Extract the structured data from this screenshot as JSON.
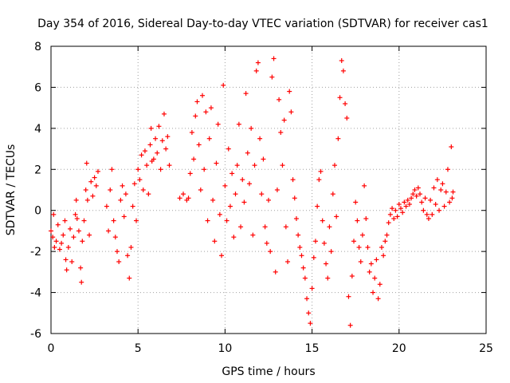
{
  "chart_data": {
    "type": "scatter",
    "title": "Day 354 of 2016, Sidereal Day-to-day VTEC variation (SDTVAR) for receiver cas1",
    "xlabel": "GPS time / hours",
    "ylabel": "SDTVAR / TECUs",
    "xlim": [
      0,
      25
    ],
    "ylim": [
      -6,
      8
    ],
    "xticks": [
      0,
      5,
      10,
      15,
      20,
      25
    ],
    "yticks": [
      -6,
      -4,
      -2,
      0,
      2,
      4,
      6,
      8
    ],
    "grid": true,
    "marker": "+",
    "marker_color": "#ff0000",
    "series": [
      {
        "name": "SDTVAR",
        "points": [
          [
            0.0,
            -1.0
          ],
          [
            0.1,
            -1.3
          ],
          [
            0.15,
            -0.2
          ],
          [
            0.2,
            -1.8
          ],
          [
            0.3,
            -1.5
          ],
          [
            0.4,
            -0.7
          ],
          [
            0.5,
            -1.9
          ],
          [
            0.6,
            -1.6
          ],
          [
            0.7,
            -1.2
          ],
          [
            0.8,
            -0.5
          ],
          [
            0.85,
            -2.4
          ],
          [
            0.9,
            -2.9
          ],
          [
            1.0,
            -1.8
          ],
          [
            1.1,
            -0.9
          ],
          [
            1.2,
            -2.5
          ],
          [
            1.3,
            -1.3
          ],
          [
            1.4,
            -0.2
          ],
          [
            1.45,
            0.5
          ],
          [
            1.5,
            -0.4
          ],
          [
            1.6,
            -1.0
          ],
          [
            1.7,
            -2.8
          ],
          [
            1.75,
            -3.5
          ],
          [
            1.8,
            -1.5
          ],
          [
            1.9,
            -0.5
          ],
          [
            2.0,
            1.0
          ],
          [
            2.05,
            2.3
          ],
          [
            2.1,
            0.5
          ],
          [
            2.2,
            -1.2
          ],
          [
            2.3,
            1.4
          ],
          [
            2.4,
            0.7
          ],
          [
            2.5,
            1.6
          ],
          [
            2.6,
            1.2
          ],
          [
            2.7,
            1.9
          ],
          [
            3.2,
            0.2
          ],
          [
            3.3,
            -1.0
          ],
          [
            3.4,
            1.0
          ],
          [
            3.5,
            2.0
          ],
          [
            3.6,
            -0.5
          ],
          [
            3.7,
            -1.3
          ],
          [
            3.8,
            -2.0
          ],
          [
            3.9,
            -2.5
          ],
          [
            4.0,
            0.5
          ],
          [
            4.1,
            1.2
          ],
          [
            4.2,
            -0.3
          ],
          [
            4.3,
            0.8
          ],
          [
            4.4,
            -2.2
          ],
          [
            4.5,
            -3.3
          ],
          [
            4.6,
            -1.8
          ],
          [
            4.7,
            0.2
          ],
          [
            4.8,
            1.3
          ],
          [
            4.9,
            -0.5
          ],
          [
            5.0,
            2.0
          ],
          [
            5.1,
            1.5
          ],
          [
            5.2,
            2.7
          ],
          [
            5.3,
            1.0
          ],
          [
            5.4,
            2.9
          ],
          [
            5.5,
            2.2
          ],
          [
            5.6,
            0.8
          ],
          [
            5.7,
            3.2
          ],
          [
            5.75,
            4.0
          ],
          [
            5.8,
            2.4
          ],
          [
            5.9,
            2.5
          ],
          [
            6.0,
            3.5
          ],
          [
            6.1,
            2.8
          ],
          [
            6.2,
            4.1
          ],
          [
            6.3,
            2.0
          ],
          [
            6.4,
            3.4
          ],
          [
            6.5,
            4.7
          ],
          [
            6.6,
            3.0
          ],
          [
            6.7,
            3.6
          ],
          [
            6.8,
            2.2
          ],
          [
            7.4,
            0.6
          ],
          [
            7.6,
            0.8
          ],
          [
            7.8,
            0.5
          ],
          [
            7.9,
            0.6
          ],
          [
            8.0,
            1.8
          ],
          [
            8.1,
            3.8
          ],
          [
            8.2,
            2.5
          ],
          [
            8.3,
            4.6
          ],
          [
            8.4,
            5.3
          ],
          [
            8.5,
            3.2
          ],
          [
            8.6,
            1.0
          ],
          [
            8.7,
            5.6
          ],
          [
            8.8,
            2.0
          ],
          [
            8.9,
            4.8
          ],
          [
            9.0,
            -0.5
          ],
          [
            9.1,
            3.5
          ],
          [
            9.2,
            5.0
          ],
          [
            9.3,
            0.5
          ],
          [
            9.4,
            -1.5
          ],
          [
            9.5,
            2.3
          ],
          [
            9.6,
            4.2
          ],
          [
            9.7,
            -0.2
          ],
          [
            9.8,
            -2.2
          ],
          [
            9.9,
            6.1
          ],
          [
            10.0,
            1.2
          ],
          [
            10.1,
            -0.5
          ],
          [
            10.2,
            3.0
          ],
          [
            10.3,
            0.2
          ],
          [
            10.4,
            1.8
          ],
          [
            10.5,
            -1.3
          ],
          [
            10.6,
            0.8
          ],
          [
            10.7,
            2.2
          ],
          [
            10.8,
            4.2
          ],
          [
            10.9,
            -0.8
          ],
          [
            11.0,
            1.5
          ],
          [
            11.1,
            0.4
          ],
          [
            11.2,
            5.7
          ],
          [
            11.3,
            2.8
          ],
          [
            11.4,
            1.3
          ],
          [
            11.5,
            4.0
          ],
          [
            11.6,
            -1.2
          ],
          [
            11.7,
            2.2
          ],
          [
            11.8,
            6.8
          ],
          [
            11.9,
            7.2
          ],
          [
            12.0,
            3.5
          ],
          [
            12.1,
            0.8
          ],
          [
            12.2,
            2.5
          ],
          [
            12.3,
            -0.8
          ],
          [
            12.4,
            -1.6
          ],
          [
            12.5,
            0.5
          ],
          [
            12.6,
            -2.0
          ],
          [
            12.7,
            6.5
          ],
          [
            12.8,
            7.4
          ],
          [
            12.9,
            -3.0
          ],
          [
            13.0,
            1.0
          ],
          [
            13.1,
            5.4
          ],
          [
            13.2,
            3.8
          ],
          [
            13.3,
            2.2
          ],
          [
            13.4,
            4.4
          ],
          [
            13.5,
            -0.8
          ],
          [
            13.6,
            -2.5
          ],
          [
            13.7,
            5.8
          ],
          [
            13.8,
            4.8
          ],
          [
            13.9,
            1.5
          ],
          [
            14.0,
            0.6
          ],
          [
            14.1,
            -0.4
          ],
          [
            14.2,
            -1.2
          ],
          [
            14.3,
            -1.8
          ],
          [
            14.4,
            -2.2
          ],
          [
            14.5,
            -2.8
          ],
          [
            14.6,
            -3.3
          ],
          [
            14.7,
            -4.3
          ],
          [
            14.8,
            -5.0
          ],
          [
            14.9,
            -5.5
          ],
          [
            15.0,
            -3.8
          ],
          [
            15.1,
            -2.3
          ],
          [
            15.2,
            -1.5
          ],
          [
            15.3,
            0.2
          ],
          [
            15.4,
            1.5
          ],
          [
            15.5,
            1.9
          ],
          [
            15.6,
            -0.5
          ],
          [
            15.7,
            -1.6
          ],
          [
            15.8,
            -2.6
          ],
          [
            15.9,
            -3.3
          ],
          [
            16.0,
            -0.8
          ],
          [
            16.1,
            -2.0
          ],
          [
            16.2,
            0.8
          ],
          [
            16.3,
            2.2
          ],
          [
            16.4,
            -0.3
          ],
          [
            16.5,
            3.5
          ],
          [
            16.6,
            5.5
          ],
          [
            16.7,
            7.3
          ],
          [
            16.8,
            6.8
          ],
          [
            16.9,
            5.2
          ],
          [
            17.0,
            4.5
          ],
          [
            17.1,
            -4.2
          ],
          [
            17.2,
            -5.6
          ],
          [
            17.3,
            -3.2
          ],
          [
            17.4,
            -1.5
          ],
          [
            17.5,
            0.4
          ],
          [
            17.6,
            -0.5
          ],
          [
            17.7,
            -1.8
          ],
          [
            17.8,
            -2.5
          ],
          [
            17.9,
            -1.2
          ],
          [
            18.0,
            1.2
          ],
          [
            18.1,
            -0.4
          ],
          [
            18.2,
            -1.8
          ],
          [
            18.3,
            -3.0
          ],
          [
            18.4,
            -2.6
          ],
          [
            18.5,
            -4.0
          ],
          [
            18.6,
            -3.3
          ],
          [
            18.7,
            -2.4
          ],
          [
            18.8,
            -4.3
          ],
          [
            18.9,
            -3.6
          ],
          [
            19.0,
            -1.8
          ],
          [
            19.1,
            -2.2
          ],
          [
            19.2,
            -1.5
          ],
          [
            19.3,
            -1.2
          ],
          [
            19.4,
            -0.6
          ],
          [
            19.5,
            -0.2
          ],
          [
            19.6,
            0.1
          ],
          [
            19.7,
            -0.4
          ],
          [
            19.8,
            0.0
          ],
          [
            19.9,
            -0.3
          ],
          [
            20.0,
            0.3
          ],
          [
            20.1,
            0.1
          ],
          [
            20.2,
            -0.1
          ],
          [
            20.3,
            0.4
          ],
          [
            20.4,
            0.2
          ],
          [
            20.5,
            0.5
          ],
          [
            20.6,
            0.3
          ],
          [
            20.7,
            0.6
          ],
          [
            20.8,
            0.8
          ],
          [
            20.9,
            1.0
          ],
          [
            21.0,
            0.7
          ],
          [
            21.1,
            1.1
          ],
          [
            21.2,
            0.8
          ],
          [
            21.3,
            0.4
          ],
          [
            21.4,
            0.0
          ],
          [
            21.5,
            0.6
          ],
          [
            21.6,
            -0.2
          ],
          [
            21.7,
            -0.4
          ],
          [
            21.8,
            0.5
          ],
          [
            21.9,
            -0.2
          ],
          [
            22.0,
            1.1
          ],
          [
            22.1,
            0.3
          ],
          [
            22.2,
            1.5
          ],
          [
            22.3,
            0.0
          ],
          [
            22.4,
            1.0
          ],
          [
            22.5,
            1.3
          ],
          [
            22.6,
            0.2
          ],
          [
            22.7,
            0.9
          ],
          [
            22.8,
            2.0
          ],
          [
            22.9,
            0.4
          ],
          [
            23.0,
            3.1
          ],
          [
            23.05,
            0.6
          ],
          [
            23.1,
            0.9
          ]
        ]
      }
    ]
  }
}
